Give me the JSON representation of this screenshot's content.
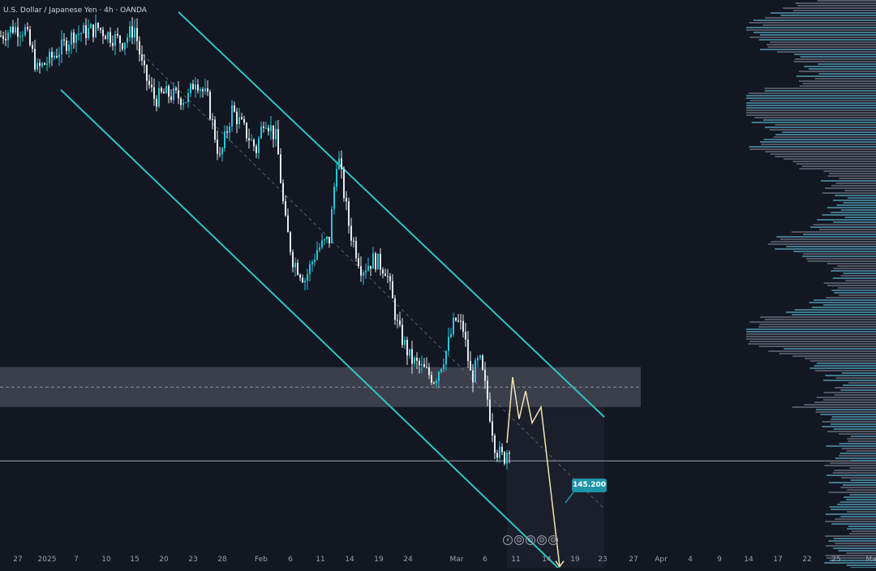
{
  "header": {
    "symbol_text": "U.S. Dollar / Japanese Yen · 4h · OANDA"
  },
  "colors": {
    "background": "#131722",
    "candle_up": "#26c6da",
    "candle_down": "#e8eaed",
    "channel": "#2ec4c4",
    "zone": "#4a4e5a",
    "projection": "#f3e4b0",
    "target_badge": "#1f93a8",
    "volume_profile": "#4a8aa0"
  },
  "target_label": "145.200",
  "bottom_icons": [
    "lightning-icon",
    "event-icon",
    "event-icon",
    "event-icon",
    "event-icon"
  ],
  "chart_data": {
    "type": "candlestick",
    "title": "U.S. Dollar / Japanese Yen · 4h · OANDA",
    "x_tick_labels": [
      "27",
      "2025",
      "7",
      "10",
      "15",
      "20",
      "23",
      "28",
      "Feb",
      "6",
      "11",
      "14",
      "19",
      "24",
      "Mar",
      "6",
      "11",
      "14",
      "19",
      "23",
      "27",
      "Apr",
      "4",
      "9",
      "14",
      "17",
      "22",
      "25",
      "Ma"
    ],
    "price_path": [
      {
        "x": 0,
        "y": 158.2
      },
      {
        "x": 15,
        "y": 158.6
      },
      {
        "x": 30,
        "y": 158.5
      },
      {
        "x": 45,
        "y": 156.5
      },
      {
        "x": 60,
        "y": 157.0
      },
      {
        "x": 75,
        "y": 157.6
      },
      {
        "x": 90,
        "y": 158.3
      },
      {
        "x": 105,
        "y": 158.4
      },
      {
        "x": 120,
        "y": 158.6
      },
      {
        "x": 135,
        "y": 158.2
      },
      {
        "x": 150,
        "y": 157.9
      },
      {
        "x": 165,
        "y": 158.6
      },
      {
        "x": 175,
        "y": 156.5
      },
      {
        "x": 190,
        "y": 155.0
      },
      {
        "x": 200,
        "y": 155.3
      },
      {
        "x": 215,
        "y": 155.2
      },
      {
        "x": 230,
        "y": 155.0
      },
      {
        "x": 240,
        "y": 156.1
      },
      {
        "x": 255,
        "y": 155.0
      },
      {
        "x": 270,
        "y": 152.0
      },
      {
        "x": 285,
        "y": 154.5
      },
      {
        "x": 300,
        "y": 153.5
      },
      {
        "x": 315,
        "y": 152.5
      },
      {
        "x": 325,
        "y": 154.2
      },
      {
        "x": 340,
        "y": 153.0
      },
      {
        "x": 350,
        "y": 149.0
      },
      {
        "x": 360,
        "y": 147.0
      },
      {
        "x": 375,
        "y": 146.0
      },
      {
        "x": 390,
        "y": 147.5
      },
      {
        "x": 405,
        "y": 148.0
      },
      {
        "x": 415,
        "y": 152.4
      },
      {
        "x": 430,
        "y": 148.5
      },
      {
        "x": 445,
        "y": 146.5
      },
      {
        "x": 460,
        "y": 147.0
      },
      {
        "x": 475,
        "y": 146.5
      },
      {
        "x": 490,
        "y": 143.5
      },
      {
        "x": 505,
        "y": 142.0
      },
      {
        "x": 520,
        "y": 141.5
      },
      {
        "x": 535,
        "y": 141.0
      },
      {
        "x": 550,
        "y": 142.5
      },
      {
        "x": 560,
        "y": 144.0
      },
      {
        "x": 570,
        "y": 143.5
      },
      {
        "x": 580,
        "y": 141.0
      },
      {
        "x": 590,
        "y": 142.0
      },
      {
        "x": 600,
        "y": 140.0
      },
      {
        "x": 610,
        "y": 137.5
      },
      {
        "x": 620,
        "y": 137.0
      },
      {
        "x": 628,
        "y": 137.8
      }
    ],
    "channel": {
      "upper": [
        {
          "x": 220,
          "y": 159.4
        },
        {
          "x": 745,
          "y": 139.1
        }
      ],
      "lower": [
        {
          "x": 75,
          "y": 155.5
        },
        {
          "x": 725,
          "y": 130.1
        }
      ],
      "midline_dashed": [
        {
          "x": 170,
          "y": 157.5
        },
        {
          "x": 745,
          "y": 134.5
        }
      ]
    },
    "resistance_zone": {
      "x_start": 0,
      "x_end": 790,
      "y_top": 141.6,
      "y_bottom": 139.6
    },
    "horizontal_line": 136.9,
    "projection_path": [
      {
        "x": 625,
        "y": 137.8
      },
      {
        "x": 632,
        "y": 141.1
      },
      {
        "x": 640,
        "y": 139.0
      },
      {
        "x": 648,
        "y": 140.4
      },
      {
        "x": 656,
        "y": 138.8
      },
      {
        "x": 667,
        "y": 139.6
      },
      {
        "x": 690,
        "y": 131.6
      }
    ],
    "target_price": 145.2,
    "grid": false,
    "volume_profile": true
  }
}
